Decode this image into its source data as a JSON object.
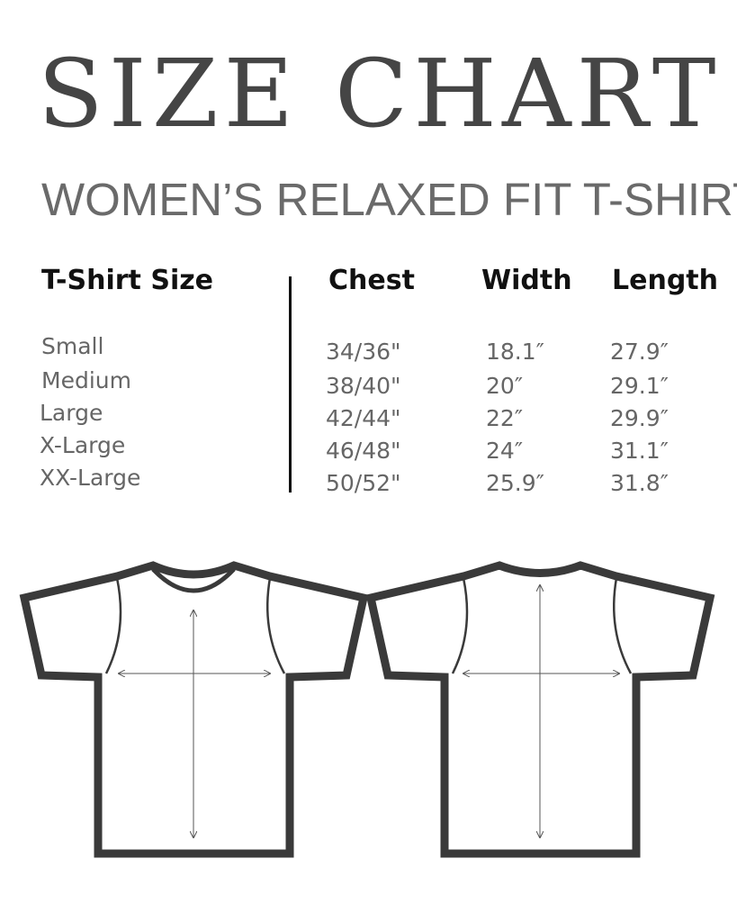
{
  "title": "SIZE CHART",
  "subtitle": "WOMEN’S RELAXED FIT T-SHIRT",
  "table": {
    "headers": [
      "T-Shirt Size",
      "Chest",
      "Width",
      "Length"
    ],
    "rows": [
      [
        "Small",
        "34/36\"",
        "18.1″",
        "27.9″"
      ],
      [
        "Medium",
        "38/40\"",
        "20″",
        "29.1″"
      ],
      [
        "Large",
        "42/44\"",
        "22″",
        "29.9″"
      ],
      [
        "X-Large",
        "46/48\"",
        "24″",
        "31.1″"
      ],
      [
        "XX-Large",
        "50/52\"",
        "25.9″",
        "31.8″"
      ]
    ]
  },
  "illustrations": [
    "tshirt-front-icon",
    "tshirt-back-icon"
  ],
  "colors": {
    "title": "#454545",
    "text": "#666666",
    "outline": "#3a3a3a"
  }
}
